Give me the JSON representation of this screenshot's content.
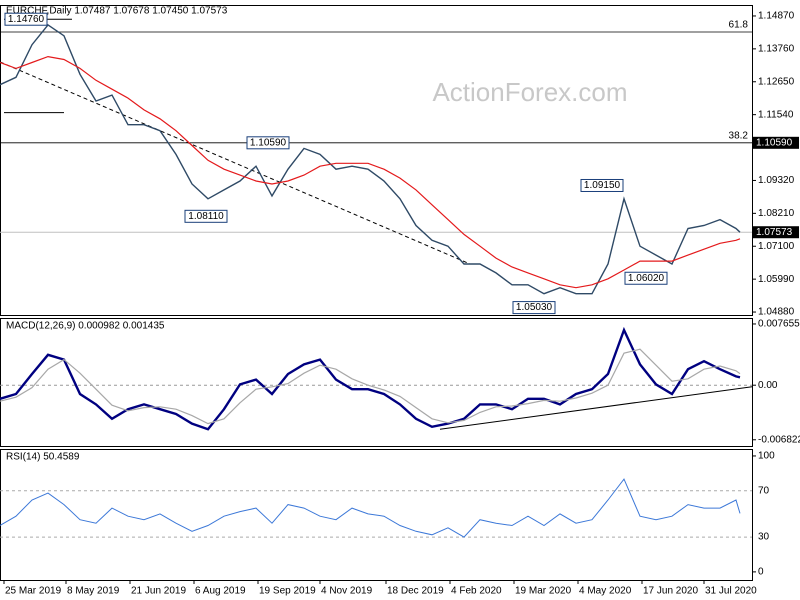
{
  "chart_data": {
    "type": "line",
    "title": "EURCHF,Daily  1.07487 1.07678 1.07450 1.07573",
    "watermark": "ActionForex.com",
    "x": [
      0,
      8,
      16,
      24,
      32,
      40,
      48,
      56,
      64,
      72,
      80,
      88,
      96,
      104,
      112,
      120,
      128,
      136,
      144,
      152,
      160,
      168,
      176,
      184,
      192,
      200,
      208,
      216,
      224,
      232,
      240,
      248,
      256,
      264,
      272,
      280,
      288,
      296,
      304,
      312,
      320,
      328,
      336,
      344,
      352,
      360,
      368,
      370
    ],
    "xlim": [
      0,
      376
    ],
    "xticks": [
      {
        "value": 2,
        "label": "25 Mar 2019"
      },
      {
        "value": 33,
        "label": "8 May 2019"
      },
      {
        "value": 65,
        "label": "21 Jun 2019"
      },
      {
        "value": 97,
        "label": "6 Aug 2019"
      },
      {
        "value": 129,
        "label": "19 Sep 2019"
      },
      {
        "value": 160,
        "label": "4 Nov 2019"
      },
      {
        "value": 193,
        "label": "18 Dec 2019"
      },
      {
        "value": 225,
        "label": "4 Feb 2020"
      },
      {
        "value": 257,
        "label": "19 Mar 2020"
      },
      {
        "value": 289,
        "label": "4 May 2020"
      },
      {
        "value": 321,
        "label": "17 Jun 2020"
      },
      {
        "value": 352,
        "label": "31 Jul 2020"
      }
    ],
    "panels": [
      {
        "ylim": [
          1.0478,
          1.1524
        ],
        "yticks": [
          {
            "value": 1.1487,
            "label": "1.14870"
          },
          {
            "value": 1.1376,
            "label": "1.13760"
          },
          {
            "value": 1.1265,
            "label": "1.12650"
          },
          {
            "value": 1.1154,
            "label": "1.11540"
          },
          {
            "value": 1.0932,
            "label": "1.09320"
          },
          {
            "value": 1.0821,
            "label": "1.08210"
          },
          {
            "value": 1.071,
            "label": "1.07100"
          },
          {
            "value": 1.0599,
            "label": "1.05990"
          },
          {
            "value": 1.0488,
            "label": "1.04880"
          }
        ],
        "series": [
          {
            "name": "EURCHF",
            "color": "#2f4a66",
            "width": 1.4,
            "values": [
              1.1255,
              1.128,
              1.139,
              1.1457,
              1.142,
              1.129,
              1.12,
              1.122,
              1.112,
              1.112,
              1.11,
              1.102,
              1.092,
              1.087,
              1.09,
              1.093,
              1.098,
              1.088,
              1.097,
              1.104,
              1.102,
              1.097,
              1.098,
              1.097,
              1.093,
              1.087,
              1.078,
              1.073,
              1.071,
              1.065,
              1.065,
              1.062,
              1.058,
              1.058,
              1.055,
              1.057,
              1.055,
              1.055,
              1.065,
              1.087,
              1.071,
              1.068,
              1.065,
              1.077,
              1.078,
              1.08,
              1.077,
              1.07573
            ]
          },
          {
            "name": "MA",
            "color": "#e41a1c",
            "width": 1.2,
            "values": [
              1.133,
              1.131,
              1.133,
              1.135,
              1.134,
              1.131,
              1.127,
              1.124,
              1.121,
              1.117,
              1.114,
              1.11,
              1.105,
              1.1,
              1.097,
              1.095,
              1.093,
              1.092,
              1.093,
              1.095,
              1.098,
              1.099,
              1.099,
              1.099,
              1.097,
              1.094,
              1.09,
              1.085,
              1.08,
              1.075,
              1.071,
              1.067,
              1.064,
              1.062,
              1.06,
              1.058,
              1.057,
              1.058,
              1.06,
              1.063,
              1.066,
              1.066,
              1.066,
              1.068,
              1.07,
              1.072,
              1.073,
              1.0735
            ]
          }
        ],
        "fib_levels": [
          {
            "label": "61.8",
            "value": 1.1433
          },
          {
            "label": "38.2",
            "value": 1.1059,
            "value_label": "1.10590"
          }
        ],
        "last": 1.07573,
        "annotations": [
          {
            "label": "1.14760",
            "value": 1.1476,
            "x": 13
          },
          {
            "label": "1.10590",
            "value": 1.1059,
            "x": 134
          },
          {
            "label": "1.08110",
            "value": 1.0811,
            "x": 103
          },
          {
            "label": "1.09150",
            "value": 1.0915,
            "x": 301
          },
          {
            "label": "1.06020",
            "value": 1.0602,
            "x": 323
          },
          {
            "label": "1.05030",
            "value": 1.0503,
            "x": 267
          }
        ],
        "trendlines": [
          {
            "x": [
              0,
              235
            ],
            "values": [
              1.1332,
              1.065
            ],
            "dashed": true
          },
          {
            "x": [
              2,
              36
            ],
            "values": [
              1.1476,
              1.1476
            ],
            "dashed": false
          },
          {
            "x": [
              2,
              32
            ],
            "values": [
              1.1161,
              1.1161
            ],
            "dashed": false
          }
        ]
      },
      {
        "title": "MACD(12,26,9) 0.000982 0.001435",
        "ylim": [
          -0.0076,
          0.0084
        ],
        "yticks": [
          0.007655,
          {
            "value": 0,
            "label": "0.00"
          },
          -0.006822
        ],
        "zero_line": true,
        "series": [
          {
            "name": "MACD",
            "color": "#000080",
            "width": 2.4,
            "values": [
              -0.0017,
              -0.0011,
              0.0014,
              0.0038,
              0.0032,
              -0.0011,
              -0.0024,
              -0.0042,
              -0.003,
              -0.0024,
              -0.003,
              -0.0036,
              -0.0048,
              -0.0055,
              -0.003,
              0.0001,
              0.0007,
              -0.0011,
              0.0014,
              0.0026,
              0.0032,
              0.0007,
              -0.0005,
              -0.0005,
              -0.0011,
              -0.0024,
              -0.0042,
              -0.0052,
              -0.0048,
              -0.0042,
              -0.0024,
              -0.0024,
              -0.003,
              -0.0017,
              -0.0017,
              -0.0024,
              -0.0011,
              -0.0005,
              0.0014,
              0.0069,
              0.0026,
              0.0001,
              -0.0011,
              0.002,
              0.003,
              0.002,
              0.0011,
              0.000982
            ]
          },
          {
            "name": "Signal",
            "color": "#a8a8a8",
            "width": 1.2,
            "values": [
              -0.002,
              -0.0015,
              -0.0003,
              0.002,
              0.0032,
              0.0015,
              -0.0005,
              -0.0025,
              -0.0032,
              -0.0028,
              -0.0027,
              -0.003,
              -0.0038,
              -0.0048,
              -0.0042,
              -0.0022,
              -0.0005,
              -0.0002,
              0.0002,
              0.0015,
              0.0025,
              0.002,
              0.0008,
              0,
              -0.0006,
              -0.0014,
              -0.0028,
              -0.0042,
              -0.0047,
              -0.0044,
              -0.0034,
              -0.0027,
              -0.0026,
              -0.0023,
              -0.0019,
              -0.002,
              -0.0016,
              -0.001,
              0,
              0.004,
              0.0045,
              0.0025,
              0.0005,
              0.0008,
              0.002,
              0.0024,
              0.0018,
              0.001435
            ]
          }
        ],
        "trendlines": [
          {
            "x": [
              220,
              376
            ],
            "values": [
              -0.0055,
              -0.0002
            ],
            "dashed": false
          }
        ]
      },
      {
        "title": "RSI(14) 50.4589",
        "ylim": [
          -7,
          106
        ],
        "yticks": [
          100,
          0
        ],
        "levels": [
          70,
          30
        ],
        "series": [
          {
            "name": "RSI",
            "color": "#3c78d8",
            "width": 1,
            "values": [
              40,
              48,
              62,
              68,
              58,
              45,
              42,
              55,
              48,
              45,
              50,
              42,
              35,
              40,
              48,
              52,
              55,
              42,
              58,
              55,
              48,
              45,
              55,
              50,
              48,
              40,
              35,
              32,
              38,
              30,
              45,
              42,
              40,
              48,
              40,
              50,
              42,
              45,
              62,
              80,
              48,
              45,
              48,
              58,
              55,
              55,
              62,
              50.4589
            ]
          }
        ]
      }
    ]
  }
}
